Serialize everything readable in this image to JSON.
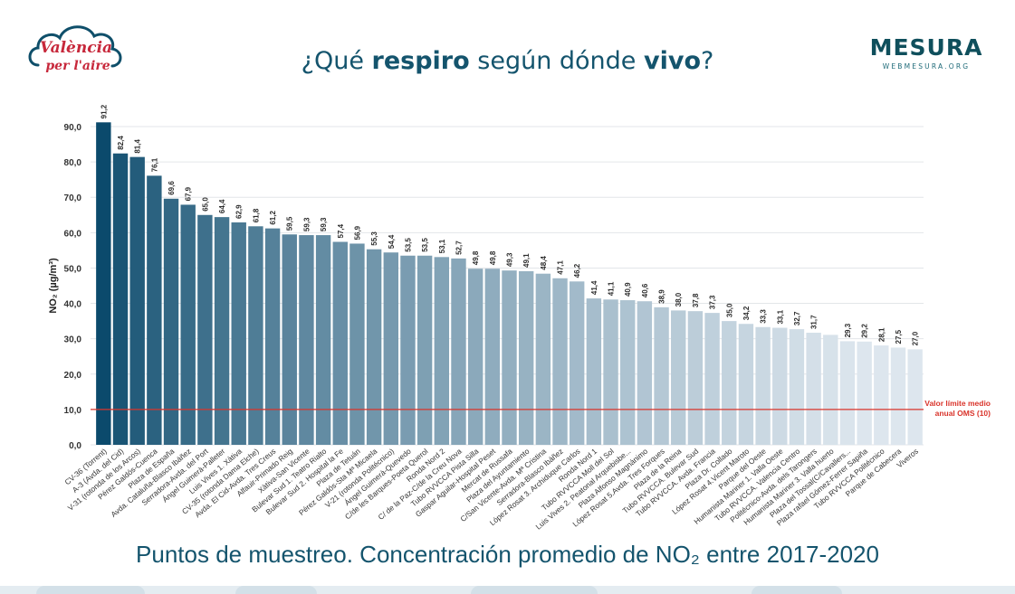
{
  "header": {
    "logo_left_line1": "València",
    "logo_left_line2": "per l'aire",
    "logo_right_name": "MESURA",
    "logo_right_url": "WEBMESURA.ORG",
    "title_part1": "¿Qué ",
    "title_part2": "respiro",
    "title_part3": " según dónde ",
    "title_part4": "vivo",
    "title_part5": "?"
  },
  "subtitle": "Puntos de muestreo. Concentración promedio de NO₂ entre 2017-2020",
  "chart_data": {
    "type": "bar",
    "ylabel": "NO₂ (µg/m³)",
    "ylim": [
      0,
      90
    ],
    "yticks": [
      "0,0",
      "10,0",
      "20,0",
      "30,0",
      "40,0",
      "50,0",
      "60,0",
      "70,0",
      "80,0",
      "90,0"
    ],
    "categories": [
      "CV-36 (Torrent)",
      "A-3 (Avda. del Cid)",
      "V-31 (rotonda de los Arcos)",
      "Pérez Galdós-Cuenca",
      "Plaza de España",
      "Avda. Cataluña-Blasco Ibáñez",
      "Serradora-Avda. del Port",
      "Ángel Guimerà-Palleter",
      "Luis Vives 1. Xàtiva",
      "CV-35 (rotonda Dama Elche)",
      "Avda. El Cid-Avda. Tres Creus",
      "Alfauir-Primado Reig",
      "Xàtiva-San Vicente",
      "Bulevar Sud 1. Teatro Rialto",
      "Bulevar Sud 2. Hospital la Fe",
      "Plaza de Tetuán",
      "Pérez Galdós-Sta Mª Micaela",
      "V-21 (rotonda Politécnico)",
      "Ángel Guimerà-Quevedo",
      "C/de les Barques-Poeta Querol",
      "Ronda Nord 2",
      "C/ de la Paz-C/de la Creu Nova",
      "Tubo RVVCCA Pista Silla",
      "Gaspar Aguilar-Hospital Peset",
      "Mercat de Russafa",
      "Plaza del Ayuntamiento",
      "C/San Vicente-Avda. Mª Cristina",
      "Serradora-Blasco Ibáñez",
      "López Rosat 3. Archiduque Carlos",
      "Ronda Nord 1",
      "Tubo RVVCCA Moll del Sol",
      "Luis Vives 2. Peatonal Arquebisbe...",
      "Plaza Alfonso Magnánimo",
      "López Rosat 5.Avda. Tres Forques",
      "Plaza de la Reina",
      "Tubo RVVCCA. Bulevar Sud",
      "Tubo RVVCCA. Avda. Francia",
      "Plaza Dr. Collado",
      "López Rosat 4.Vicent Maroto",
      "Parque del Oeste",
      "Humanista Mariner 1. Valla Oeste",
      "Tubo RVVCCA. Valencia Centro",
      "Politécnico-Avda. dels Tarongers",
      "Humanista Mariner 3. Valla huerto",
      "Plaza del Tossal(C/Cavallers...",
      "Plaza rafael Gómez-Ferrer Sapiña",
      "Tubo RVVCCA Politécnico",
      "Parque de Cabecera",
      "Viveros"
    ],
    "values": [
      91.2,
      82.4,
      81.4,
      76.1,
      69.6,
      67.9,
      65.0,
      64.4,
      62.9,
      61.8,
      61.2,
      59.5,
      59.3,
      59.3,
      57.4,
      56.9,
      55.3,
      54.4,
      53.5,
      53.5,
      53.1,
      52.7,
      49.8,
      49.8,
      49.3,
      49.1,
      48.4,
      47.1,
      46.2,
      41.4,
      41.1,
      40.9,
      40.6,
      38.9,
      38.0,
      37.8,
      37.3,
      35.0,
      34.2,
      33.3,
      33.1,
      32.7,
      31.7,
      31.1,
      29.3,
      29.2,
      28.1,
      27.5,
      27.0
    ],
    "labels": [
      "91,2",
      "82,4",
      "81,4",
      "76,1",
      "69,6",
      "67,9",
      "65,0",
      "64,4",
      "62,9",
      "61,8",
      "61,2",
      "59,5",
      "59,3",
      "59,3",
      "57,4",
      "56,9",
      "55,3",
      "54,4",
      "53,5",
      "53,5",
      "53,1",
      "52,7",
      "49,8",
      "49,8",
      "49,3",
      "49,1",
      "48,4",
      "47,1",
      "46,2",
      "41,4",
      "41,1",
      "40,9",
      "40,6",
      "38,9",
      "38,0",
      "37,8",
      "37,3",
      "35,0",
      "34,2",
      "33,3",
      "33,1",
      "32,7",
      "31,7",
      "",
      "29,3",
      "29,2",
      "28,1",
      "27,5",
      "27,0"
    ],
    "reference_line": {
      "value": 10,
      "label_line1": "Valor límite medio",
      "label_line2": "anual OMS (10)",
      "color": "#d9342b"
    },
    "colors": {
      "dark": "#0b4a6c",
      "light": "#dde6ee",
      "grid": "#e3e6e9",
      "axis_text": "#333333"
    },
    "grid": true
  }
}
